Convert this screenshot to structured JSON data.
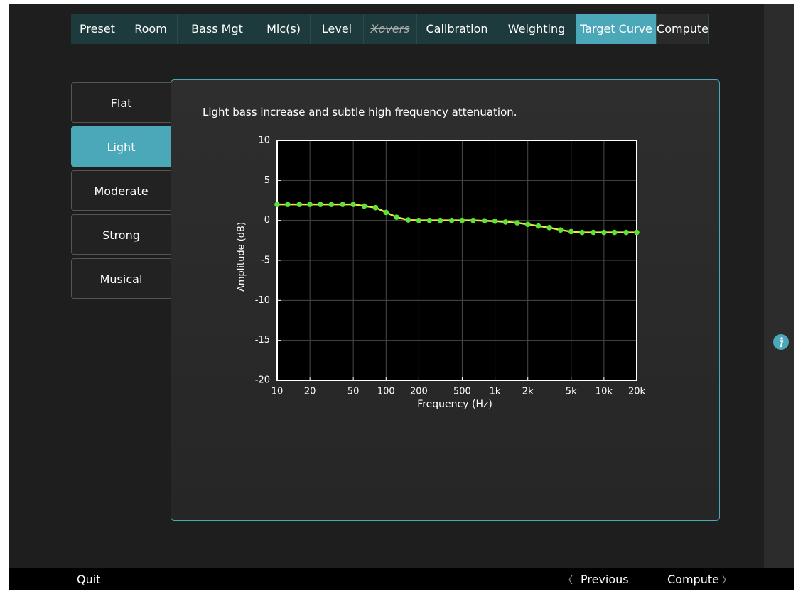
{
  "tabs": [
    "Preset",
    "Room",
    "Bass Mgt",
    "Mic(s)",
    "Level",
    "Xovers",
    "Calibration",
    "Weighting",
    "Target Curve",
    "Compute"
  ],
  "active_tab": 8,
  "presets": [
    "Flat",
    "Light",
    "Moderate",
    "Strong",
    "Musical"
  ],
  "selected_preset": 1,
  "description": "Light bass increase and subtle high frequency attenuation.",
  "chart_data": {
    "type": "line",
    "xlabel": "Frequency (Hz)",
    "ylabel": "Amplitude (dB)",
    "x": [
      10,
      12.5,
      16,
      20,
      25,
      31.5,
      40,
      50,
      63,
      80,
      100,
      125,
      160,
      200,
      250,
      315,
      400,
      500,
      630,
      800,
      1000,
      1250,
      1600,
      2000,
      2500,
      3150,
      4000,
      5000,
      6300,
      8000,
      10000,
      12500,
      16000,
      20000
    ],
    "series": [
      {
        "line_color": "#e6ee3c",
        "color": "#5ee23a",
        "values": [
          2,
          2,
          2,
          2,
          2,
          2,
          2,
          2,
          1.8,
          1.6,
          1.0,
          0.4,
          0.05,
          0,
          0,
          0,
          0,
          0,
          0,
          -0.05,
          -0.1,
          -0.2,
          -0.3,
          -0.5,
          -0.7,
          -0.9,
          -1.2,
          -1.4,
          -1.5,
          -1.5,
          -1.5,
          -1.5,
          -1.5,
          -1.5
        ]
      }
    ],
    "xscale": "log",
    "xlim": [
      10,
      20000
    ],
    "ylim": [
      -20,
      10
    ],
    "xticks": [
      10,
      20,
      50,
      100,
      200,
      500,
      {
        "value": 1000,
        "label": "1k"
      },
      {
        "value": 2000,
        "label": "2k"
      },
      {
        "value": 5000,
        "label": "5k"
      },
      {
        "value": 10000,
        "label": "10k"
      },
      {
        "value": 20000,
        "label": "20k"
      }
    ],
    "yticks": [
      -20,
      -15,
      -10,
      -5,
      0,
      5,
      10
    ],
    "grid": true
  },
  "footer": {
    "quit": "Quit",
    "previous": "Previous",
    "next": "Compute"
  }
}
